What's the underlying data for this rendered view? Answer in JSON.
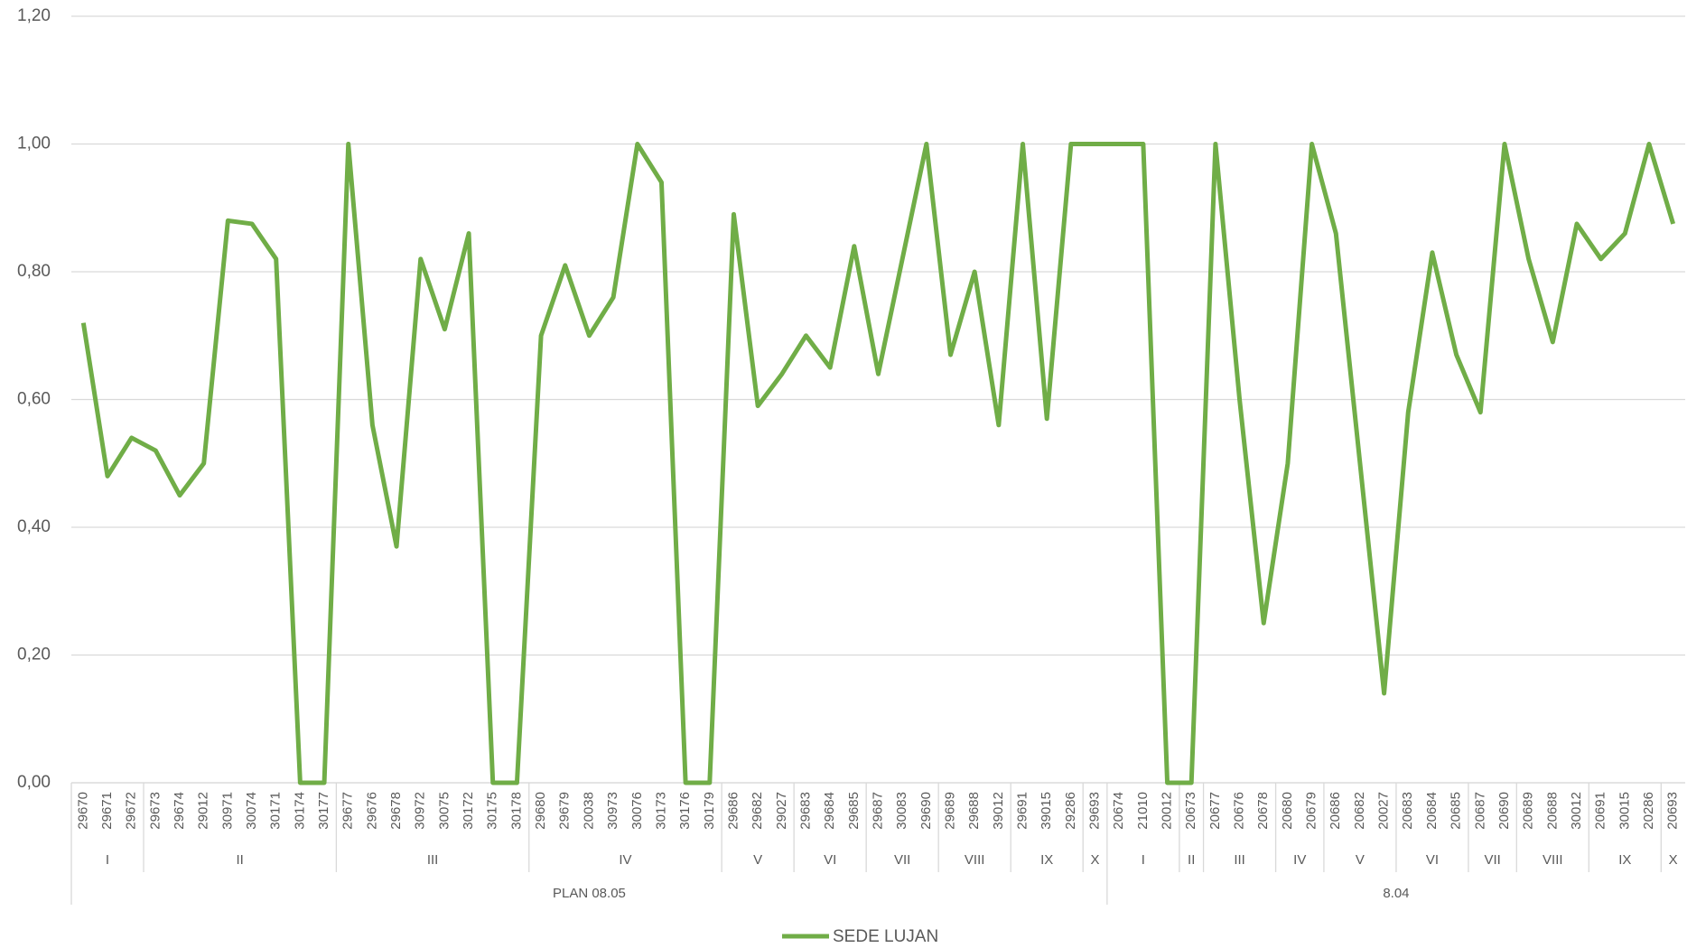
{
  "chart_data": {
    "type": "line",
    "groups": [
      {
        "name": "PLAN 08.05",
        "subgroups": [
          {
            "name": "I",
            "categories": [
              "29670",
              "29671",
              "29672"
            ]
          },
          {
            "name": "II",
            "categories": [
              "29673",
              "29674",
              "29012",
              "30971",
              "30074",
              "30171",
              "30174",
              "30177"
            ]
          },
          {
            "name": "III",
            "categories": [
              "29677",
              "29676",
              "29678",
              "30972",
              "30075",
              "30172",
              "30175",
              "30178"
            ]
          },
          {
            "name": "IV",
            "categories": [
              "29680",
              "29679",
              "20038",
              "30973",
              "30076",
              "30173",
              "30176",
              "30179"
            ]
          },
          {
            "name": "V",
            "categories": [
              "29686",
              "29682",
              "29027"
            ]
          },
          {
            "name": "VI",
            "categories": [
              "29683",
              "29684",
              "29685"
            ]
          },
          {
            "name": "VII",
            "categories": [
              "29687",
              "30083",
              "29690"
            ]
          },
          {
            "name": "VIII",
            "categories": [
              "29689",
              "29688",
              "39012"
            ]
          },
          {
            "name": "IX",
            "categories": [
              "29691",
              "39015",
              "29286"
            ]
          },
          {
            "name": "X",
            "categories": [
              "29693"
            ]
          }
        ]
      },
      {
        "name": "8.04",
        "subgroups": [
          {
            "name": "I",
            "categories": [
              "20674",
              "21010",
              "20012"
            ]
          },
          {
            "name": "II",
            "categories": [
              "20673"
            ]
          },
          {
            "name": "III",
            "categories": [
              "20677",
              "20676",
              "20678"
            ]
          },
          {
            "name": "IV",
            "categories": [
              "20680",
              "20679"
            ]
          },
          {
            "name": "V",
            "categories": [
              "20686",
              "20682",
              "20027"
            ]
          },
          {
            "name": "VI",
            "categories": [
              "20683",
              "20684",
              "20685"
            ]
          },
          {
            "name": "VII",
            "categories": [
              "20687",
              "20690"
            ]
          },
          {
            "name": "VIII",
            "categories": [
              "20689",
              "20688",
              "30012"
            ]
          },
          {
            "name": "IX",
            "categories": [
              "20691",
              "30015",
              "20286"
            ]
          },
          {
            "name": "X",
            "categories": [
              "20693"
            ]
          }
        ]
      }
    ],
    "series": [
      {
        "name": "SEDE LUJAN",
        "color": "#70ad47",
        "values": [
          0.72,
          0.48,
          0.54,
          0.52,
          0.45,
          0.5,
          0.88,
          0.875,
          0.82,
          0,
          0,
          1,
          0.56,
          0.37,
          0.82,
          0.71,
          0.86,
          0,
          0,
          0.7,
          0.81,
          0.7,
          0.76,
          1,
          0.94,
          0,
          0,
          0.89,
          0.59,
          0.64,
          0.7,
          0.65,
          0.84,
          0.64,
          0.82,
          1,
          0.67,
          0.8,
          0.56,
          1,
          0.57,
          1,
          1,
          1,
          1,
          0,
          0,
          1,
          0.6,
          0.25,
          0.5,
          1,
          0.86,
          0.5,
          0.14,
          0.58,
          0.83,
          0.67,
          0.58,
          1,
          0.82,
          0.69,
          0.875,
          0.82,
          0.86,
          1,
          0.875
        ]
      }
    ],
    "ylim": [
      0,
      1.2
    ],
    "yticks": [
      {
        "value": 0,
        "label": "0,00"
      },
      {
        "value": 0.2,
        "label": "0,20"
      },
      {
        "value": 0.4,
        "label": "0,40"
      },
      {
        "value": 0.6,
        "label": "0,60"
      },
      {
        "value": 0.8,
        "label": "0,80"
      },
      {
        "value": 1,
        "label": "1,00"
      },
      {
        "value": 1.2,
        "label": "1,20"
      }
    ],
    "grid": true,
    "legend": "bottom"
  }
}
